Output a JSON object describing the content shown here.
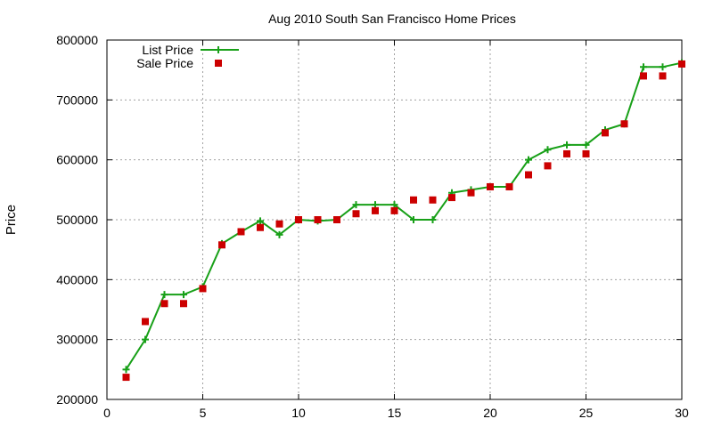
{
  "chart_data": {
    "type": "line",
    "title": "Aug 2010 South San Francisco Home Prices",
    "xlabel": "",
    "ylabel": "Price",
    "xlim": [
      0,
      30
    ],
    "ylim": [
      200000,
      800000
    ],
    "x_ticks": [
      0,
      5,
      10,
      15,
      20,
      25,
      30
    ],
    "y_ticks": [
      200000,
      300000,
      400000,
      500000,
      600000,
      700000,
      800000
    ],
    "grid": true,
    "legend_position": "top-left",
    "x": [
      1,
      2,
      3,
      4,
      5,
      6,
      7,
      8,
      9,
      10,
      11,
      12,
      13,
      14,
      15,
      16,
      17,
      18,
      19,
      20,
      21,
      22,
      23,
      24,
      25,
      26,
      27,
      28,
      29,
      30
    ],
    "series": [
      {
        "name": "List Price",
        "style": "line-with-plus-markers",
        "color": "#18a018",
        "values": [
          250000,
          300000,
          375000,
          375000,
          388000,
          460000,
          480000,
          498000,
          475000,
          500000,
          498000,
          500000,
          525000,
          525000,
          525000,
          500000,
          500000,
          545000,
          550000,
          555000,
          555000,
          600000,
          617000,
          625000,
          625000,
          650000,
          660000,
          755000,
          755000,
          762000
        ]
      },
      {
        "name": "Sale Price",
        "style": "square-markers",
        "color": "#cc0000",
        "values": [
          237000,
          330000,
          360000,
          360000,
          385000,
          458000,
          480000,
          487000,
          493000,
          500000,
          500000,
          500000,
          510000,
          515000,
          515000,
          533000,
          533000,
          537000,
          545000,
          555000,
          555000,
          575000,
          590000,
          610000,
          610000,
          645000,
          660000,
          740000,
          740000,
          760000
        ]
      }
    ]
  }
}
